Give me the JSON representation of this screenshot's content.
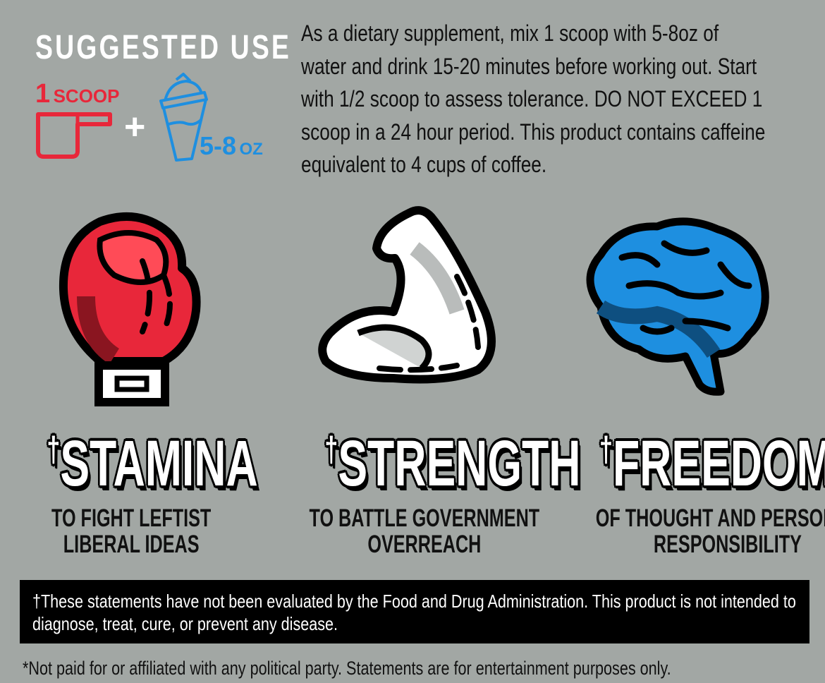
{
  "suggested_use": {
    "title": "SUGGESTED USE",
    "scoop_count": "1",
    "scoop_unit": "SCOOP",
    "plus": "+",
    "water_amount": "5-8",
    "water_unit": "OZ",
    "instructions_lines": [
      "As a dietary supplement, mix 1 scoop with 5-8oz of",
      "water and drink 15-20 minutes before working out. Start",
      "with 1/2 scoop to assess tolerance. DO NOT EXCEED 1",
      "scoop in a 24 hour period. This product contains caffeine",
      "equivalent to 4 cups of coffee."
    ]
  },
  "benefits": [
    {
      "icon": "boxing-glove-icon",
      "dagger": "†",
      "title": "STAMINA",
      "lines": [
        "TO FIGHT LEFTIST",
        "LIBERAL IDEAS"
      ]
    },
    {
      "icon": "flexed-arm-icon",
      "dagger": "†",
      "title": "STRENGTH",
      "lines": [
        "TO BATTLE GOVERNMENT",
        "OVERREACH"
      ]
    },
    {
      "icon": "brain-icon",
      "dagger": "†",
      "title": "FREEDOM",
      "lines": [
        "OF THOUGHT AND  PERSONAL",
        "RESPONSIBILITY"
      ]
    }
  ],
  "disclaimer_lines": [
    "†These statements have not been evaluated by the Food and Drug Administration. This product is not intended to",
    "diagnose, treat, cure, or prevent any disease."
  ],
  "footnote": "*Not paid for or affiliated with any political party. Statements are for entertainment purposes only.",
  "colors": {
    "background": "#a2a7a4",
    "red": "#e8273a",
    "blue": "#1e8fe0",
    "black": "#000000",
    "white": "#ffffff"
  }
}
